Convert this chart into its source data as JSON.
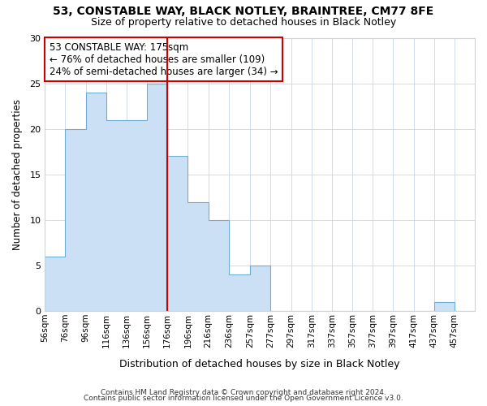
{
  "title_line1": "53, CONSTABLE WAY, BLACK NOTLEY, BRAINTREE, CM77 8FE",
  "title_line2": "Size of property relative to detached houses in Black Notley",
  "xlabel": "Distribution of detached houses by size in Black Notley",
  "ylabel": "Number of detached properties",
  "bin_labels": [
    "56sqm",
    "76sqm",
    "96sqm",
    "116sqm",
    "136sqm",
    "156sqm",
    "176sqm",
    "196sqm",
    "216sqm",
    "236sqm",
    "257sqm",
    "277sqm",
    "297sqm",
    "317sqm",
    "337sqm",
    "357sqm",
    "377sqm",
    "397sqm",
    "417sqm",
    "437sqm",
    "457sqm"
  ],
  "bin_left_edges": [
    56,
    76,
    96,
    116,
    136,
    156,
    176,
    196,
    216,
    236,
    257,
    277,
    297,
    317,
    337,
    357,
    377,
    397,
    417,
    437,
    457
  ],
  "bin_width": 20,
  "bar_heights": [
    6,
    20,
    24,
    21,
    21,
    25,
    17,
    12,
    10,
    4,
    5,
    0,
    0,
    0,
    0,
    0,
    0,
    0,
    0,
    1,
    0
  ],
  "bar_facecolor": "#cce0f5",
  "bar_edgecolor": "#6aaed6",
  "grid_color": "#c8d4e8",
  "property_line_x": 176,
  "property_line_color": "#cc0000",
  "annotation_text": "53 CONSTABLE WAY: 175sqm\n← 76% of detached houses are smaller (109)\n24% of semi-detached houses are larger (34) →",
  "annotation_box_edgecolor": "#cc0000",
  "annotation_box_facecolor": "#ffffff",
  "ylim": [
    0,
    30
  ],
  "yticks": [
    0,
    5,
    10,
    15,
    20,
    25,
    30
  ],
  "xlim_left": 56,
  "xlim_right": 477,
  "footer_line1": "Contains HM Land Registry data © Crown copyright and database right 2024.",
  "footer_line2": "Contains public sector information licensed under the Open Government Licence v3.0.",
  "bg_color": "#ffffff",
  "fig_bg_color": "#ffffff"
}
